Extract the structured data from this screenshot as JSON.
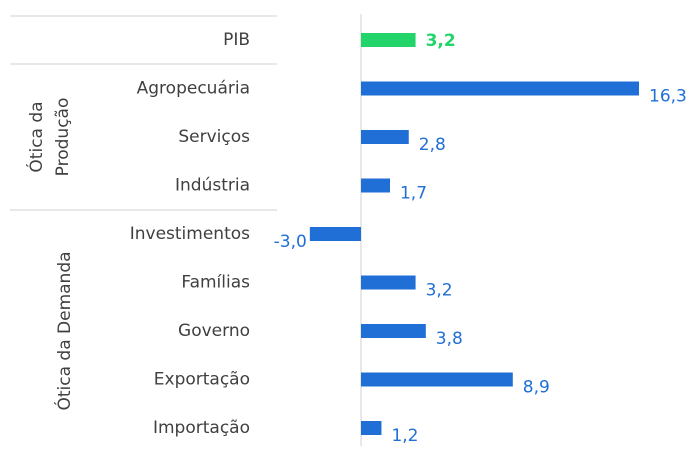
{
  "chart_data": {
    "type": "bar",
    "orientation": "horizontal",
    "categories": [
      "PIB",
      "Agropecuária",
      "Serviços",
      "Indústria",
      "Investimentos",
      "Famílias",
      "Governo",
      "Exportação",
      "Importação"
    ],
    "values": [
      3.2,
      16.3,
      2.8,
      1.7,
      -3.0,
      3.2,
      3.8,
      8.9,
      1.2
    ],
    "value_labels": [
      "3,2",
      "16,3",
      "2,8",
      "1,7",
      "-3,0",
      "3,2",
      "3,8",
      "8,9",
      "1,2"
    ],
    "colors": [
      "#22d46a",
      "#1f6fd6",
      "#1f6fd6",
      "#1f6fd6",
      "#1f6fd6",
      "#1f6fd6",
      "#1f6fd6",
      "#1f6fd6",
      "#1f6fd6"
    ],
    "groups": [
      {
        "label": [
          "Ótica da",
          "Produção"
        ]
      },
      {
        "label": [
          "Ótica da Demanda"
        ]
      }
    ]
  }
}
